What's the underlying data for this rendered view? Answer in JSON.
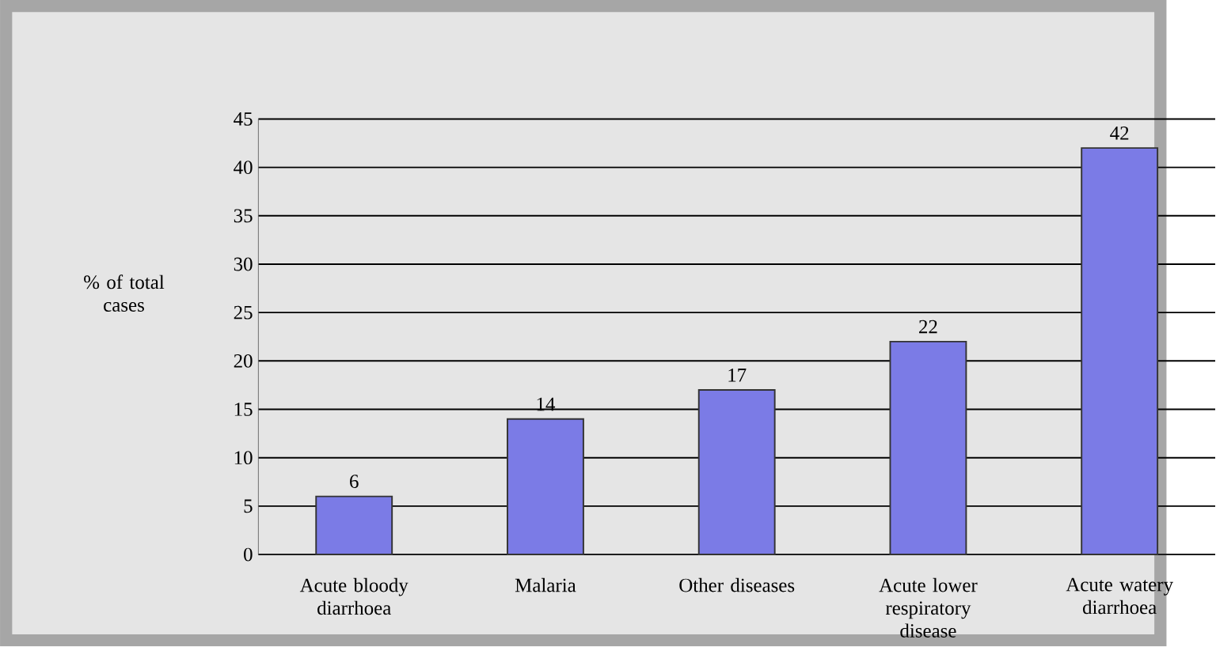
{
  "chart_data": {
    "type": "bar",
    "ylabel": "% of total cases",
    "categories": [
      "Acute bloody diarrhoea",
      "Malaria",
      "Other diseases",
      "Acute lower respiratory disease",
      "Acute watery diarrhoea"
    ],
    "values": [
      6,
      14,
      17,
      22,
      42
    ],
    "color": "#7b7be6",
    "ylim": [
      0,
      45
    ],
    "yticks": [
      0,
      5,
      10,
      15,
      20,
      25,
      30,
      35,
      40,
      45
    ],
    "grid": "y",
    "data_labels": true
  }
}
